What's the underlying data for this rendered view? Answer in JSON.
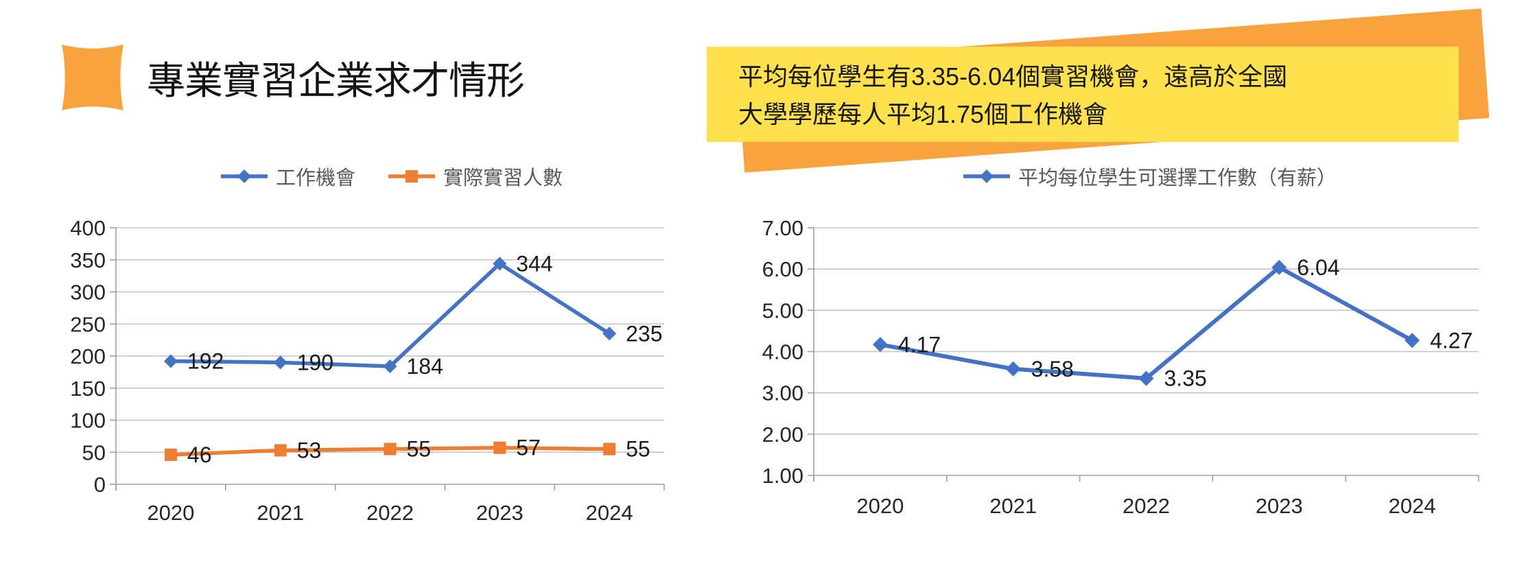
{
  "header": {
    "title": "專業實習企業求才情形",
    "icon_color": "#F9A33E"
  },
  "callout": {
    "lines": [
      "平均每位學生有3.35-6.04個實習機會，遠高於全國",
      "大學學歷每人平均1.75個工作機會"
    ],
    "bg_color": "#FFE14D",
    "banner_color": "#F9A33E",
    "text_color": "#161616"
  },
  "chart_data": [
    {
      "type": "line",
      "title": "",
      "categories": [
        "2020",
        "2021",
        "2022",
        "2023",
        "2024"
      ],
      "series": [
        {
          "name": "工作機會",
          "values": [
            192,
            190,
            184,
            344,
            235
          ],
          "color": "#4472C4",
          "marker": "diamond"
        },
        {
          "name": "實際實習人數",
          "values": [
            46,
            53,
            55,
            57,
            55
          ],
          "color": "#ED7D31",
          "marker": "square"
        }
      ],
      "ylim": [
        0,
        400
      ],
      "ytick_step": 50,
      "y_format": "int",
      "grid": true,
      "legend_position": "top",
      "grid_color": "#C3C3C3",
      "axis_color": "#A0A0A0",
      "tick_color": "#262626",
      "label_color": "#1A1A1A"
    },
    {
      "type": "line",
      "title": "",
      "categories": [
        "2020",
        "2021",
        "2022",
        "2023",
        "2024"
      ],
      "series": [
        {
          "name": "平均每位學生可選擇工作數（有薪）",
          "values": [
            4.17,
            3.58,
            3.35,
            6.04,
            4.27
          ],
          "color": "#4472C4",
          "marker": "diamond"
        }
      ],
      "ylim": [
        1,
        7
      ],
      "ytick_step": 1,
      "y_format": "2dp",
      "grid": true,
      "legend_position": "top",
      "grid_color": "#C3C3C3",
      "axis_color": "#A0A0A0",
      "tick_color": "#262626",
      "label_color": "#1A1A1A"
    }
  ]
}
